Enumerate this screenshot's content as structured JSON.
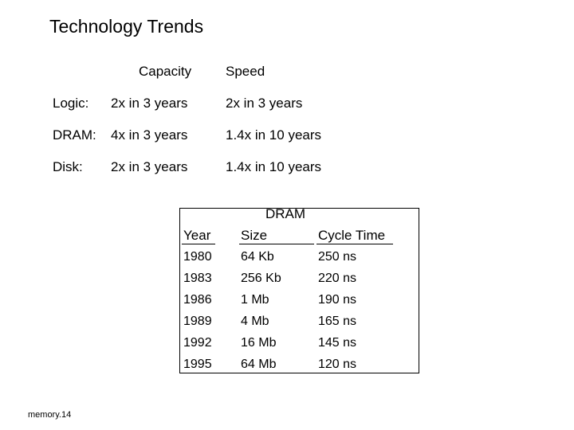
{
  "title": "Technology Trends",
  "trends": {
    "headers": {
      "capacity": "Capacity",
      "speed": "Speed"
    },
    "rows": [
      {
        "label": "Logic:",
        "capacity": "2x  in  3 years",
        "speed": "2x  in 3 years"
      },
      {
        "label": "DRAM:",
        "capacity": "4x  in  3 years",
        "speed": "1.4x  in 10 years"
      },
      {
        "label": "Disk:",
        "capacity": "2x  in  3 years",
        "speed": "1.4x  in 10 years"
      }
    ]
  },
  "dram_table": {
    "caption": "DRAM",
    "columns": [
      "Year",
      "Size",
      "Cycle Time"
    ],
    "rows": [
      [
        "1980",
        "64 Kb",
        "250 ns"
      ],
      [
        "1983",
        "256 Kb",
        "220 ns"
      ],
      [
        "1986",
        "1 Mb",
        "190 ns"
      ],
      [
        "1989",
        "4 Mb",
        "165 ns"
      ],
      [
        "1992",
        "16 Mb",
        "145 ns"
      ],
      [
        "1995",
        "64 Mb",
        "120 ns"
      ]
    ]
  },
  "footer": "memory.14"
}
